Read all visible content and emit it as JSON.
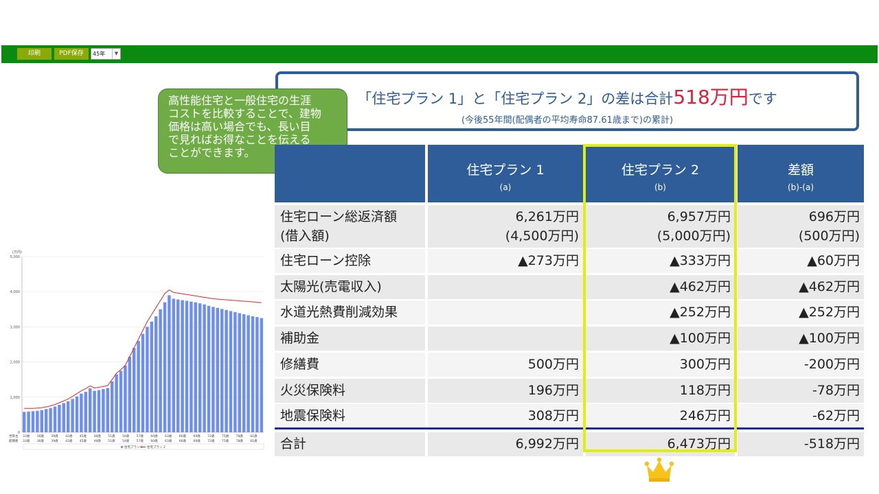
{
  "toolbar": {
    "print_label": "印刷",
    "pdf_label": "PDF保存",
    "period_value": "45年"
  },
  "summary": {
    "line1_pre": "「住宅プラン 1」と「住宅プラン 2」の差は合計",
    "line1_amount": "518万円",
    "line1_post": "です",
    "line2": "(今後55年間(配偶者の平均寿命87.61歳まで)の累計)"
  },
  "callout": {
    "text": "高性能住宅と一般住宅の生涯\nコストを比較することで、建物\n価格は高い場合でも、長い目\nで見ればお得なことを伝える\nことができます。"
  },
  "table": {
    "headers": [
      {
        "title": "住宅プラン 1",
        "sub": "(a)"
      },
      {
        "title": "住宅プラン 2",
        "sub": "(b)"
      },
      {
        "title": "差額",
        "sub": "(b)-(a)"
      }
    ],
    "rows": [
      {
        "label1": "住宅ローン総返済額",
        "label2": "(借入額)",
        "a1": "6,261万円",
        "a2": "(4,500万円)",
        "b1": "6,957万円",
        "b2": "(5,000万円)",
        "d1": "696万円",
        "d2": "(500万円)"
      },
      {
        "label1": "住宅ローン控除",
        "a1": "▲273万円",
        "b1": "▲333万円",
        "d1": "▲60万円"
      },
      {
        "label1": "太陽光(売電収入)",
        "a1": "",
        "b1": "▲462万円",
        "d1": "▲462万円"
      },
      {
        "label1": "水道光熱費削減効果",
        "a1": "",
        "b1": "▲252万円",
        "d1": "▲252万円"
      },
      {
        "label1": "補助金",
        "a1": "",
        "b1": "▲100万円",
        "d1": "▲100万円"
      },
      {
        "label1": "修繕費",
        "a1": "500万円",
        "b1": "300万円",
        "d1": "-200万円"
      },
      {
        "label1": "火災保険料",
        "a1": "196万円",
        "b1": "118万円",
        "d1": "-78万円"
      },
      {
        "label1": "地震保険料",
        "a1": "308万円",
        "b1": "246万円",
        "d1": "-62万円"
      },
      {
        "label1": "合計",
        "a1": "6,992万円",
        "b1": "6,473万円",
        "d1": "-518万円"
      }
    ]
  },
  "colors": {
    "toolbar": "#0a8a0e",
    "button": "#8ca90a",
    "header": "#2e5d9a",
    "accent_red": "#e01e3c",
    "highlight": "#dff00c",
    "callout": "#6fac46",
    "bar": "#6f8ff0",
    "line": "#e8252c"
  },
  "icons": {
    "crown": "crown-icon"
  },
  "chart_data": {
    "type": "bar",
    "unit_label": "(万円)",
    "ylim": [
      0,
      5000
    ],
    "yticks": [
      "0",
      "1,000",
      "2,000",
      "3,000",
      "4,000",
      "5,000"
    ],
    "row_labels": [
      "世帯主",
      "配偶者"
    ],
    "xtick_labels_head": [
      "33歳",
      "36歳",
      "39歳",
      "42歳",
      "45歳",
      "48歳",
      "51歳",
      "54歳",
      "57歳",
      "60歳",
      "63歳",
      "66歳",
      "69歳",
      "72歳",
      "75歳",
      "78歳",
      "81歳"
    ],
    "xtick_labels_spouse": [
      "33歳",
      "36歳",
      "39歳",
      "42歳",
      "45歳",
      "48歳",
      "51歳",
      "54歳",
      "57歳",
      "60歳",
      "63歳",
      "66歳",
      "69歳",
      "72歳",
      "75歳",
      "78歳",
      "81歳"
    ],
    "series": [
      {
        "name": "住宅プラン 1",
        "kind": "bar",
        "values": [
          580,
          590,
          600,
          610,
          630,
          660,
          690,
          730,
          780,
          830,
          880,
          950,
          1020,
          1100,
          1150,
          1250,
          1180,
          1200,
          1230,
          1260,
          1450,
          1650,
          1750,
          1900,
          2150,
          2400,
          2600,
          2800,
          3000,
          3150,
          3300,
          3500,
          3700,
          3900,
          3800,
          3780,
          3760,
          3740,
          3720,
          3700,
          3670,
          3640,
          3600,
          3570,
          3540,
          3510,
          3480,
          3450,
          3420,
          3390,
          3360,
          3330,
          3300,
          3280,
          3250
        ]
      },
      {
        "name": "住宅プラン 2",
        "kind": "line",
        "values": [
          680,
          680,
          680,
          690,
          700,
          720,
          750,
          790,
          840,
          890,
          950,
          1020,
          1100,
          1180,
          1240,
          1320,
          1260,
          1280,
          1300,
          1330,
          1500,
          1680,
          1780,
          1900,
          2150,
          2400,
          2650,
          2900,
          3150,
          3350,
          3550,
          3750,
          3950,
          4050,
          3980,
          3960,
          3940,
          3920,
          3900,
          3880,
          3860,
          3840,
          3820,
          3800,
          3790,
          3780,
          3770,
          3760,
          3750,
          3740,
          3730,
          3720,
          3710,
          3700,
          3690
        ]
      }
    ],
    "legend": "bottom"
  }
}
